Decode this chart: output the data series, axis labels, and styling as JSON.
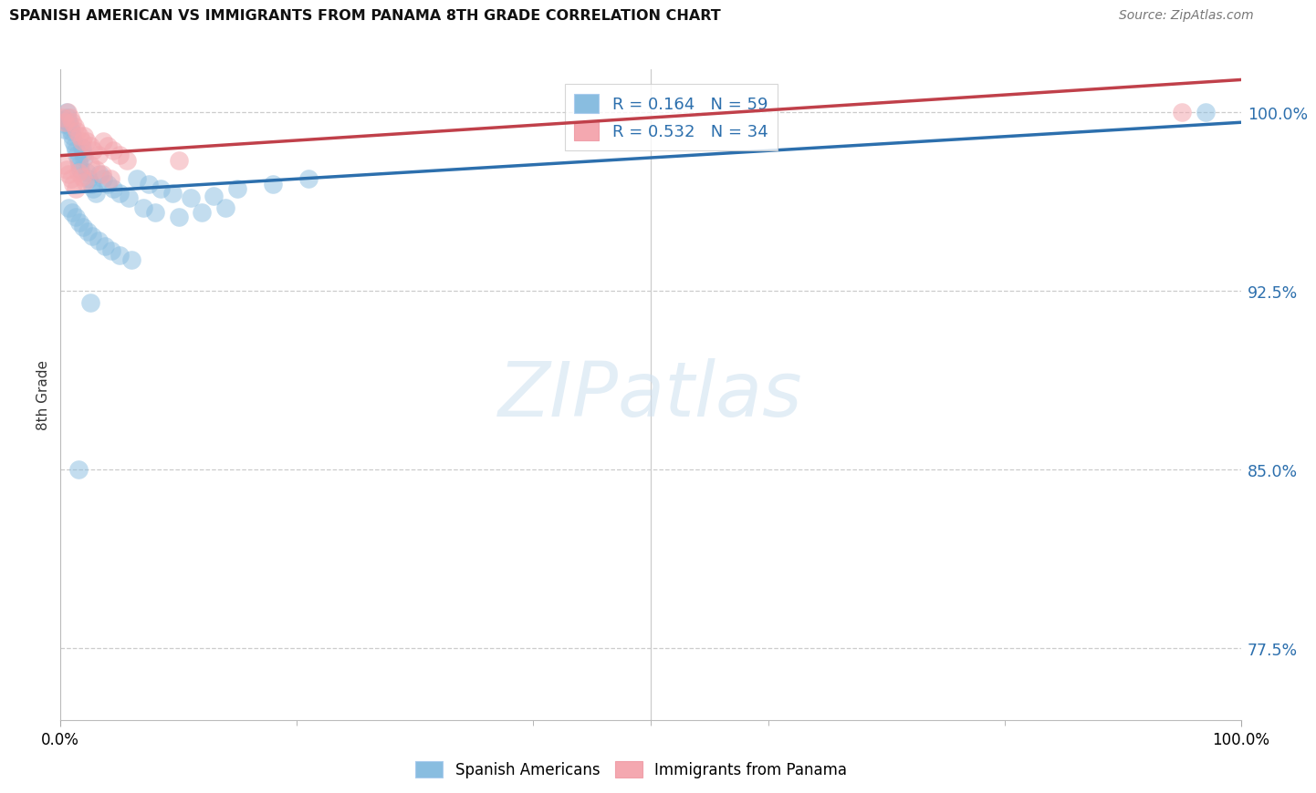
{
  "title": "SPANISH AMERICAN VS IMMIGRANTS FROM PANAMA 8TH GRADE CORRELATION CHART",
  "source": "Source: ZipAtlas.com",
  "ylabel": "8th Grade",
  "xlim": [
    0.0,
    1.0
  ],
  "ylim": [
    0.745,
    1.018
  ],
  "yticks": [
    0.775,
    0.85,
    0.925,
    1.0
  ],
  "ytick_labels": [
    "77.5%",
    "85.0%",
    "92.5%",
    "100.0%"
  ],
  "r_blue": 0.164,
  "n_blue": 59,
  "r_pink": 0.532,
  "n_pink": 34,
  "blue_scatter_color": "#89bde0",
  "pink_scatter_color": "#f4a8b0",
  "blue_line_color": "#2c6fad",
  "pink_line_color": "#c0404a",
  "legend_label_blue": "Spanish Americans",
  "legend_label_pink": "Immigrants from Panama",
  "watermark": "ZIPatlas",
  "blue_scatter_x": [
    0.002,
    0.003,
    0.004,
    0.005,
    0.006,
    0.007,
    0.008,
    0.009,
    0.01,
    0.011,
    0.012,
    0.013,
    0.014,
    0.015,
    0.016,
    0.017,
    0.018,
    0.019,
    0.02,
    0.022,
    0.024,
    0.026,
    0.028,
    0.03,
    0.033,
    0.036,
    0.04,
    0.045,
    0.05,
    0.058,
    0.065,
    0.075,
    0.085,
    0.095,
    0.11,
    0.13,
    0.15,
    0.18,
    0.21,
    0.007,
    0.01,
    0.013,
    0.016,
    0.019,
    0.023,
    0.027,
    0.032,
    0.038,
    0.043,
    0.05,
    0.06,
    0.07,
    0.08,
    0.1,
    0.12,
    0.14,
    0.97,
    0.015,
    0.025
  ],
  "blue_scatter_y": [
    0.997,
    0.995,
    0.993,
    1.0,
    0.998,
    0.996,
    0.994,
    0.992,
    0.99,
    0.988,
    0.986,
    0.984,
    0.982,
    0.98,
    0.978,
    0.976,
    0.985,
    0.983,
    0.981,
    0.975,
    0.972,
    0.97,
    0.968,
    0.966,
    0.974,
    0.972,
    0.97,
    0.968,
    0.966,
    0.964,
    0.972,
    0.97,
    0.968,
    0.966,
    0.964,
    0.965,
    0.968,
    0.97,
    0.972,
    0.96,
    0.958,
    0.956,
    0.954,
    0.952,
    0.95,
    0.948,
    0.946,
    0.944,
    0.942,
    0.94,
    0.938,
    0.96,
    0.958,
    0.956,
    0.958,
    0.96,
    1.0,
    0.85,
    0.92
  ],
  "pink_scatter_x": [
    0.002,
    0.004,
    0.006,
    0.008,
    0.01,
    0.012,
    0.014,
    0.016,
    0.018,
    0.02,
    0.022,
    0.025,
    0.028,
    0.032,
    0.036,
    0.04,
    0.045,
    0.05,
    0.056,
    0.003,
    0.005,
    0.007,
    0.009,
    0.011,
    0.013,
    0.015,
    0.018,
    0.021,
    0.025,
    0.03,
    0.035,
    0.042,
    0.1,
    0.95
  ],
  "pink_scatter_y": [
    0.998,
    0.996,
    1.0,
    0.998,
    0.996,
    0.994,
    0.992,
    0.99,
    0.988,
    0.99,
    0.988,
    0.986,
    0.984,
    0.982,
    0.988,
    0.986,
    0.984,
    0.982,
    0.98,
    0.978,
    0.976,
    0.974,
    0.972,
    0.97,
    0.968,
    0.975,
    0.973,
    0.971,
    0.978,
    0.976,
    0.974,
    0.972,
    0.98,
    1.0
  ]
}
